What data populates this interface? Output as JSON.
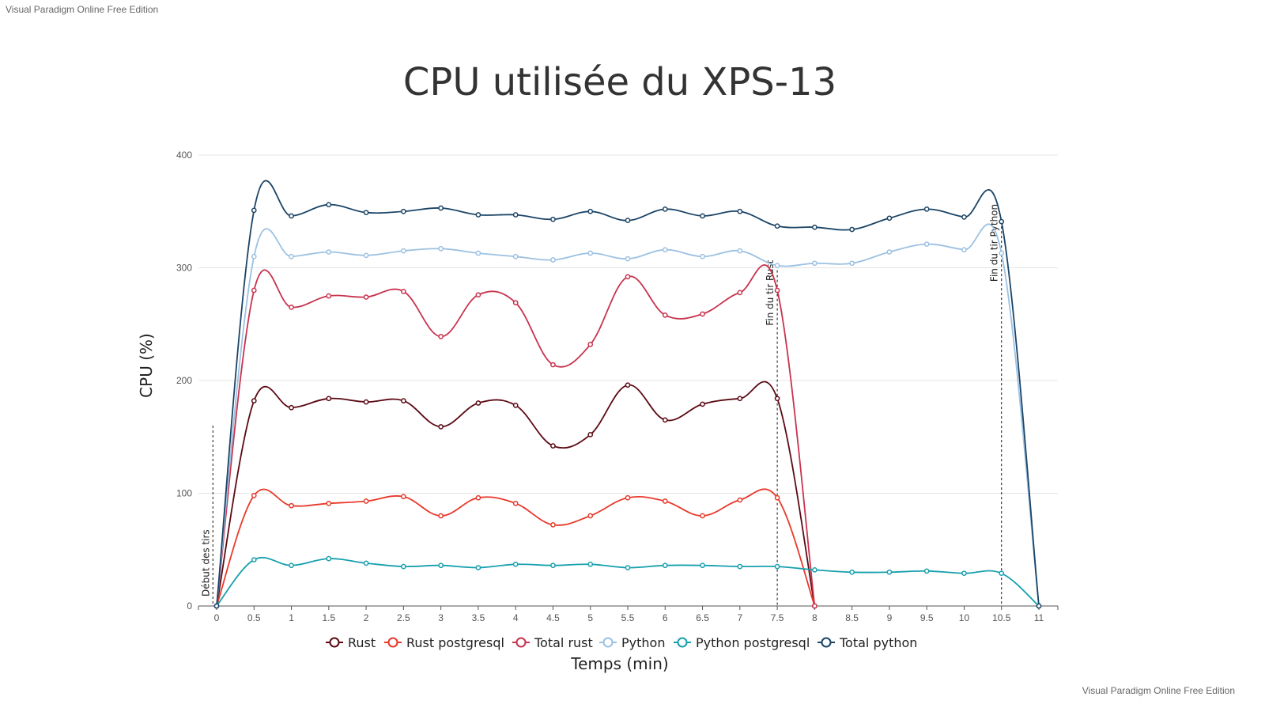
{
  "watermark": "Visual Paradigm Online Free Edition",
  "chart_data": {
    "type": "line",
    "title": "CPU utilisée du XPS-13",
    "xlabel": "Temps (min)",
    "ylabel": "CPU (%)",
    "xlim": [
      0,
      11
    ],
    "ylim": [
      0,
      400
    ],
    "x_ticks": [
      "0",
      "0.5",
      "1",
      "1.5",
      "2",
      "2.5",
      "3",
      "3.5",
      "4",
      "4.5",
      "5",
      "5.5",
      "6",
      "6.5",
      "7",
      "7.5",
      "8",
      "8.5",
      "9",
      "9.5",
      "10",
      "10.5",
      "11"
    ],
    "y_ticks": [
      "0",
      "100",
      "200",
      "300",
      "400"
    ],
    "grid": true,
    "legend_position": "bottom",
    "series": [
      {
        "name": "Rust",
        "color": "#5c0a14",
        "x": [
          0,
          0.5,
          1,
          1.5,
          2,
          2.5,
          3,
          3.5,
          4,
          4.5,
          5,
          5.5,
          6,
          6.5,
          7,
          7.5,
          8
        ],
        "values": [
          0,
          182,
          176,
          184,
          181,
          182,
          159,
          180,
          178,
          142,
          152,
          196,
          165,
          179,
          184,
          184,
          0
        ]
      },
      {
        "name": "Rust postgresql",
        "color": "#e8392a",
        "x": [
          0,
          0.5,
          1,
          1.5,
          2,
          2.5,
          3,
          3.5,
          4,
          4.5,
          5,
          5.5,
          6,
          6.5,
          7,
          7.5,
          8
        ],
        "values": [
          0,
          98,
          89,
          91,
          93,
          97,
          80,
          96,
          91,
          72,
          80,
          96,
          93,
          80,
          94,
          96,
          0
        ]
      },
      {
        "name": "Total rust",
        "color": "#c8334e",
        "x": [
          0,
          0.5,
          1,
          1.5,
          2,
          2.5,
          3,
          3.5,
          4,
          4.5,
          5,
          5.5,
          6,
          6.5,
          7,
          7.5,
          8
        ],
        "values": [
          0,
          280,
          265,
          275,
          274,
          279,
          239,
          276,
          269,
          214,
          232,
          292,
          258,
          259,
          278,
          280,
          0
        ]
      },
      {
        "name": "Python",
        "color": "#9cc1e2",
        "x": [
          0,
          0.5,
          1,
          1.5,
          2,
          2.5,
          3,
          3.5,
          4,
          4.5,
          5,
          5.5,
          6,
          6.5,
          7,
          7.5,
          8,
          8.5,
          9,
          9.5,
          10,
          10.5,
          11
        ],
        "values": [
          0,
          310,
          310,
          314,
          311,
          315,
          317,
          313,
          310,
          307,
          313,
          308,
          316,
          310,
          315,
          302,
          304,
          304,
          314,
          321,
          316,
          313,
          0
        ]
      },
      {
        "name": "Python postgresql",
        "color": "#17a0ae",
        "x": [
          0,
          0.5,
          1,
          1.5,
          2,
          2.5,
          3,
          3.5,
          4,
          4.5,
          5,
          5.5,
          6,
          6.5,
          7,
          7.5,
          8,
          8.5,
          9,
          9.5,
          10,
          10.5,
          11
        ],
        "values": [
          0,
          41,
          36,
          42,
          38,
          35,
          36,
          34,
          37,
          36,
          37,
          34,
          36,
          36,
          35,
          35,
          32,
          30,
          30,
          31,
          29,
          29,
          0
        ]
      },
      {
        "name": "Total python",
        "color": "#1b4466",
        "x": [
          0,
          0.5,
          1,
          1.5,
          2,
          2.5,
          3,
          3.5,
          4,
          4.5,
          5,
          5.5,
          6,
          6.5,
          7,
          7.5,
          8,
          8.5,
          9,
          9.5,
          10,
          10.5,
          11
        ],
        "values": [
          0,
          351,
          346,
          356,
          349,
          350,
          353,
          347,
          347,
          343,
          350,
          342,
          352,
          346,
          350,
          337,
          336,
          334,
          344,
          352,
          345,
          341,
          0
        ]
      }
    ],
    "annotations": [
      {
        "x": -0.05,
        "y_top": 160,
        "text": "Début des tirs"
      },
      {
        "x": 7.5,
        "y_top": 302,
        "text": "Fin du tir Rust"
      },
      {
        "x": 10.5,
        "y_top": 341,
        "text": "Fin du tir Python"
      }
    ]
  }
}
